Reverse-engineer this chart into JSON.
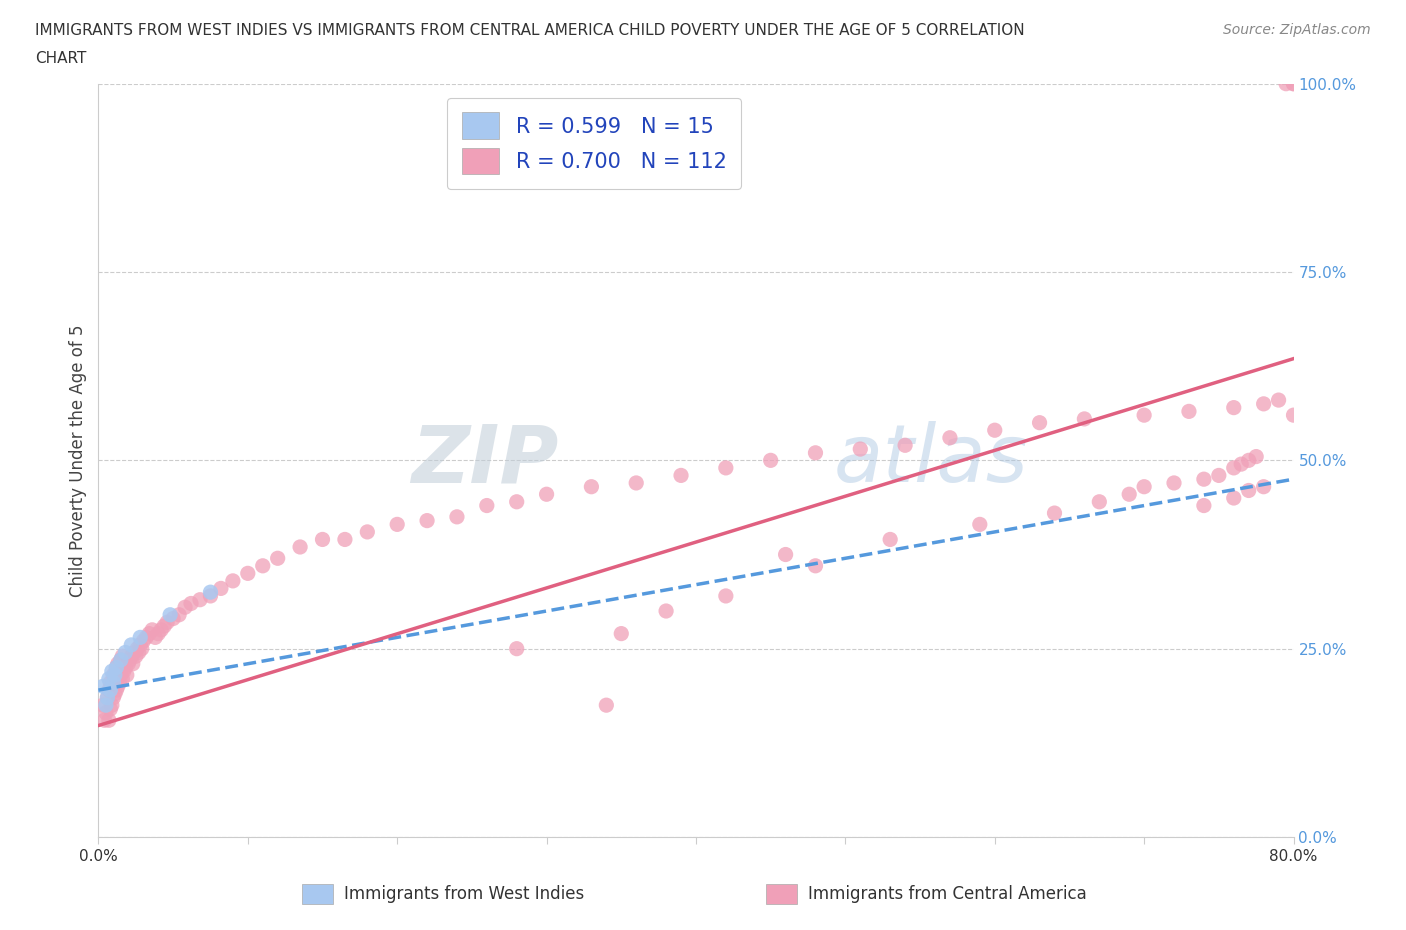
{
  "title_line1": "IMMIGRANTS FROM WEST INDIES VS IMMIGRANTS FROM CENTRAL AMERICA CHILD POVERTY UNDER THE AGE OF 5 CORRELATION",
  "title_line2": "CHART",
  "source": "Source: ZipAtlas.com",
  "ylabel": "Child Poverty Under the Age of 5",
  "legend_label1": "Immigrants from West Indies",
  "legend_label2": "Immigrants from Central America",
  "r1": "0.599",
  "n1": 15,
  "r2": "0.700",
  "n2": 112,
  "color1": "#a8c8f0",
  "color2": "#f0a0b8",
  "line_color1": "#5599dd",
  "line_color2": "#e06080",
  "xlim": [
    0.0,
    0.8
  ],
  "ylim": [
    0.0,
    1.0
  ],
  "background_color": "#ffffff",
  "watermark_zip": "ZIP",
  "watermark_atlas": "atlas",
  "west_indies_x": [
    0.003,
    0.005,
    0.006,
    0.007,
    0.008,
    0.009,
    0.01,
    0.011,
    0.012,
    0.015,
    0.018,
    0.022,
    0.028,
    0.048,
    0.075
  ],
  "west_indies_y": [
    0.2,
    0.175,
    0.185,
    0.21,
    0.195,
    0.22,
    0.205,
    0.215,
    0.225,
    0.235,
    0.245,
    0.255,
    0.265,
    0.295,
    0.325
  ],
  "trend1_x0": 0.0,
  "trend1_x1": 0.8,
  "trend1_y0": 0.195,
  "trend1_y1": 0.475,
  "trend2_x0": 0.0,
  "trend2_x1": 0.8,
  "trend2_y0": 0.148,
  "trend2_y1": 0.635,
  "central_america_x": [
    0.003,
    0.004,
    0.005,
    0.006,
    0.007,
    0.007,
    0.008,
    0.008,
    0.009,
    0.009,
    0.01,
    0.01,
    0.011,
    0.011,
    0.012,
    0.012,
    0.013,
    0.013,
    0.014,
    0.014,
    0.015,
    0.015,
    0.016,
    0.016,
    0.017,
    0.018,
    0.019,
    0.02,
    0.021,
    0.022,
    0.023,
    0.024,
    0.025,
    0.026,
    0.027,
    0.028,
    0.029,
    0.03,
    0.032,
    0.034,
    0.036,
    0.038,
    0.04,
    0.042,
    0.044,
    0.046,
    0.05,
    0.054,
    0.058,
    0.062,
    0.068,
    0.075,
    0.082,
    0.09,
    0.1,
    0.11,
    0.12,
    0.135,
    0.15,
    0.165,
    0.18,
    0.2,
    0.22,
    0.24,
    0.26,
    0.28,
    0.3,
    0.33,
    0.36,
    0.39,
    0.42,
    0.45,
    0.48,
    0.51,
    0.54,
    0.57,
    0.6,
    0.63,
    0.66,
    0.7,
    0.73,
    0.76,
    0.78,
    0.79,
    0.795,
    0.8,
    0.8,
    0.8,
    0.74,
    0.76,
    0.77,
    0.78,
    0.34,
    0.48,
    0.38,
    0.42,
    0.28,
    0.35,
    0.46,
    0.53,
    0.59,
    0.64,
    0.67,
    0.69,
    0.7,
    0.72,
    0.74,
    0.75,
    0.76,
    0.765,
    0.77,
    0.775
  ],
  "central_america_y": [
    0.175,
    0.155,
    0.165,
    0.185,
    0.155,
    0.195,
    0.17,
    0.205,
    0.175,
    0.2,
    0.185,
    0.215,
    0.19,
    0.21,
    0.195,
    0.225,
    0.2,
    0.23,
    0.205,
    0.22,
    0.215,
    0.235,
    0.21,
    0.24,
    0.22,
    0.225,
    0.215,
    0.23,
    0.235,
    0.24,
    0.23,
    0.245,
    0.24,
    0.25,
    0.245,
    0.255,
    0.25,
    0.26,
    0.265,
    0.27,
    0.275,
    0.265,
    0.27,
    0.275,
    0.28,
    0.285,
    0.29,
    0.295,
    0.305,
    0.31,
    0.315,
    0.32,
    0.33,
    0.34,
    0.35,
    0.36,
    0.37,
    0.385,
    0.395,
    0.395,
    0.405,
    0.415,
    0.42,
    0.425,
    0.44,
    0.445,
    0.455,
    0.465,
    0.47,
    0.48,
    0.49,
    0.5,
    0.51,
    0.515,
    0.52,
    0.53,
    0.54,
    0.55,
    0.555,
    0.56,
    0.565,
    0.57,
    0.575,
    0.58,
    1.0,
    1.0,
    1.0,
    0.56,
    0.44,
    0.45,
    0.46,
    0.465,
    0.175,
    0.36,
    0.3,
    0.32,
    0.25,
    0.27,
    0.375,
    0.395,
    0.415,
    0.43,
    0.445,
    0.455,
    0.465,
    0.47,
    0.475,
    0.48,
    0.49,
    0.495,
    0.5,
    0.505
  ]
}
